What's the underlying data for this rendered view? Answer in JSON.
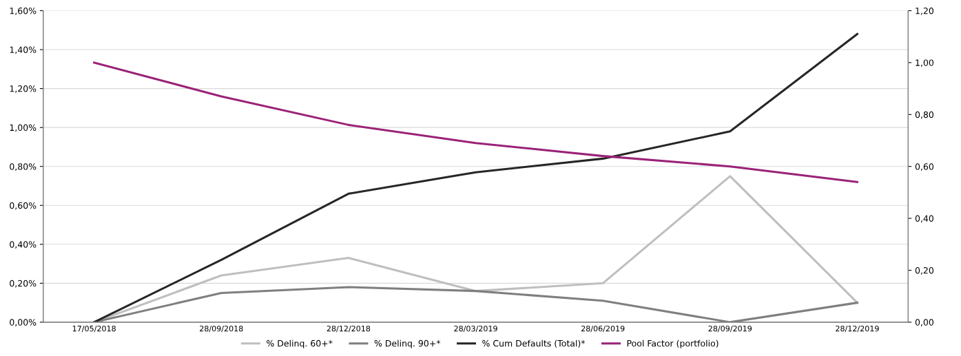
{
  "chart_data": {
    "type": "line",
    "categories": [
      "17/05/2018",
      "28/09/2018",
      "28/12/2018",
      "28/03/2019",
      "28/06/2019",
      "28/09/2019",
      "28/12/2019"
    ],
    "series": [
      {
        "name": "% Delinq. 60+*",
        "color": "#bfbfbf",
        "values": [
          0,
          0.24,
          0.33,
          0.16,
          0.2,
          0.75,
          0.1
        ]
      },
      {
        "name": "% Delinq. 90+*",
        "color": "#7f7f7f",
        "values": [
          0,
          0.15,
          0.18,
          0.16,
          0.11,
          0,
          0.1
        ]
      },
      {
        "name": "% Cum Defaults (Total)*",
        "color": "#262626",
        "values": [
          0,
          0.32,
          0.66,
          0.77,
          0.84,
          0.98,
          1.48
        ]
      },
      {
        "name": "Pool Factor (portfolio)",
        "color": "#9b2277",
        "axis": "y2",
        "values": [
          1.0,
          0.87,
          0.76,
          0.69,
          0.64,
          0.6,
          0.54
        ]
      }
    ],
    "ylim": [
      0,
      1.6
    ],
    "yticks": [
      {
        "value": 0,
        "label": "0,00%"
      },
      {
        "value": 0.2,
        "label": "0,20%"
      },
      {
        "value": 0.4,
        "label": "0,40%"
      },
      {
        "value": 0.6,
        "label": "0,60%"
      },
      {
        "value": 0.8,
        "label": "0,80%"
      },
      {
        "value": 1.0,
        "label": "1,00%"
      },
      {
        "value": 1.2,
        "label": "1,20%"
      },
      {
        "value": 1.4,
        "label": "1,40%"
      },
      {
        "value": 1.6,
        "label": "1,60%"
      }
    ],
    "y2lim": [
      0,
      1.2
    ],
    "y2ticks": [
      {
        "value": 0,
        "label": "0,00"
      },
      {
        "value": 0.2,
        "label": "0,20"
      },
      {
        "value": 0.4,
        "label": "0,40"
      },
      {
        "value": 0.6,
        "label": "0,60"
      },
      {
        "value": 0.8,
        "label": "0,80"
      },
      {
        "value": 1.0,
        "label": "1,00"
      },
      {
        "value": 1.2,
        "label": "1,20"
      }
    ],
    "grid": "y",
    "legend": "bottom",
    "marker": "none",
    "line_style": "solid"
  }
}
